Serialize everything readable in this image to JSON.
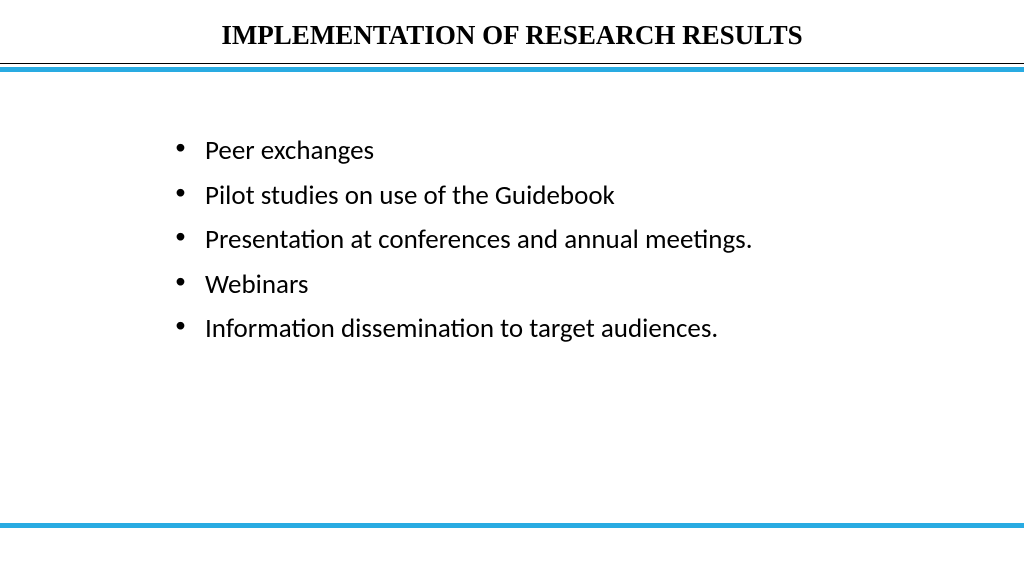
{
  "slide": {
    "title": "IMPLEMENTATION OF RESEARCH RESULTS",
    "bullets": [
      "Peer exchanges",
      "Pilot studies on use of the Guidebook",
      "Presentation at conferences and annual meetings.",
      "Webinars",
      "Information dissemination to target audiences."
    ],
    "colors": {
      "accent": "#29abe2",
      "text": "#000000",
      "background": "#ffffff",
      "thin_line": "#000000"
    },
    "styling": {
      "title_font": "Times New Roman",
      "title_fontsize": 27,
      "title_weight": "bold",
      "body_font": "Calibri",
      "body_fontsize": 27,
      "divider_thick_height": 5,
      "divider_thin_height": 1
    }
  }
}
